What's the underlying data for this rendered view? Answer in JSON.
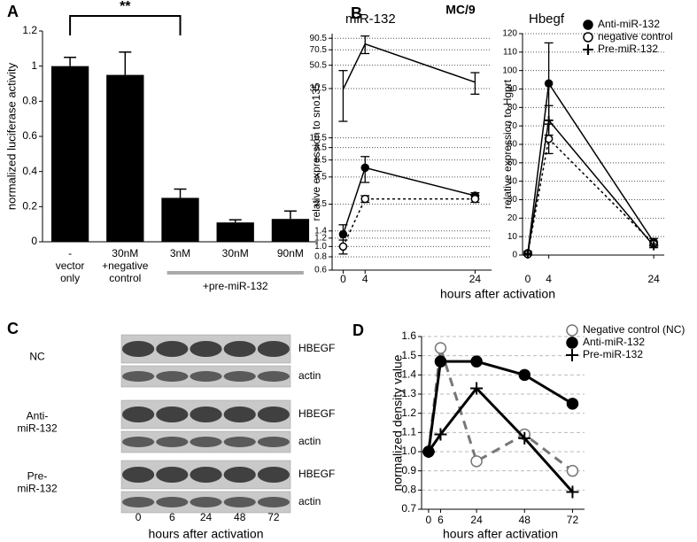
{
  "panel_labels": [
    "A",
    "B",
    "C",
    "D"
  ],
  "chart_data": [
    {
      "type": "bar",
      "y_label": "normalized luciferase activity",
      "categories": [
        [
          "-",
          "vector",
          "only"
        ],
        [
          "30nM",
          "+negative",
          "control"
        ],
        [
          "3nM"
        ],
        [
          "30nM"
        ],
        [
          "90nM"
        ]
      ],
      "values": [
        1.0,
        0.95,
        0.25,
        0.11,
        0.13
      ],
      "errors": [
        0.05,
        0.13,
        0.05,
        0.015,
        0.045
      ],
      "color": "#000000",
      "ylim": [
        0,
        1.2
      ],
      "yticks": [
        0,
        0.2,
        0.4,
        0.6,
        0.8,
        1,
        1.2
      ],
      "annotations": [
        {
          "text": "**",
          "span": [
            0,
            2
          ],
          "style": "bracket"
        },
        {
          "text": "+pre-miR-132",
          "span": [
            2,
            4
          ],
          "style": "group"
        }
      ]
    },
    {
      "type": "line",
      "suptitle": "MC/9",
      "title": "miR-132",
      "x_label": "hours after activation",
      "y_label": "relative expression to sno135",
      "x": [
        0,
        4,
        24
      ],
      "xlim": [
        -2,
        27
      ],
      "xticks": [
        0,
        4,
        24
      ],
      "ylim": [
        0.6,
        100
      ],
      "log_y": true,
      "yticks": [
        0.6,
        0.8,
        {
          "value": 1,
          "label": "1.0"
        },
        1.2,
        1.4,
        2.5,
        4.5,
        6.5,
        8.5,
        10.5,
        30.5,
        50.5,
        70.5,
        90.5
      ],
      "grid": "dotted",
      "series": [
        {
          "color": "#000000",
          "marker": "none",
          "dash": false,
          "values": [
            30,
            80,
            35
          ],
          "errors": [
            15,
            15,
            8
          ]
        },
        {
          "color": "#000000",
          "marker": "filled",
          "dash": false,
          "values": [
            1.3,
            5.5,
            3.0
          ],
          "errors": [
            0.3,
            1.5,
            0.2
          ]
        },
        {
          "color": "#000000",
          "marker": "open",
          "dash": true,
          "values": [
            1.0,
            2.8,
            2.8
          ],
          "errors": [
            0.15,
            0.2,
            0.2
          ]
        }
      ]
    },
    {
      "type": "line",
      "title": "Hbegf",
      "y_label": "relative expression to Hgprt",
      "x": [
        0,
        4,
        24
      ],
      "xlim": [
        -1,
        26
      ],
      "xticks": [
        0,
        4,
        24
      ],
      "ylim": [
        0,
        120
      ],
      "yticks": [
        0,
        10,
        20,
        30,
        40,
        50,
        60,
        70,
        80,
        90,
        100,
        110,
        120
      ],
      "grid": "dotted",
      "legend": "upper right",
      "series": [
        {
          "name": "Anti-miR-132",
          "color": "#000000",
          "marker": "filled",
          "dash": false,
          "values": [
            1,
            93,
            7
          ],
          "errors": [
            1,
            22,
            2
          ]
        },
        {
          "name": "negative control",
          "color": "#000000",
          "marker": "open",
          "dash": true,
          "values": [
            0.5,
            63,
            6
          ],
          "errors": [
            0.5,
            8,
            1
          ]
        },
        {
          "name": "Pre-miR-132",
          "color": "#000000",
          "marker": "plus",
          "dash": false,
          "values": [
            0.5,
            73,
            5
          ],
          "errors": [
            0.5,
            8,
            1
          ]
        }
      ]
    },
    {
      "type": "line",
      "x_label": "hours after activation",
      "y_label": "normalized density value",
      "x": [
        0,
        6,
        24,
        48,
        72
      ],
      "xlim": [
        -3.5,
        78
      ],
      "xticks": [
        0,
        6,
        24,
        48,
        72
      ],
      "ylim": [
        0.7,
        1.6
      ],
      "yticks": [
        0.7,
        0.8,
        0.9,
        {
          "value": 1,
          "label": "1.0"
        },
        1.1,
        1.2,
        1.3,
        1.4,
        1.5,
        1.6
      ],
      "grid": "dashed",
      "legend": "upper right",
      "series": [
        {
          "name": "Negative control (NC)",
          "color": "#777777",
          "marker": "open",
          "dash": true,
          "values": [
            1.0,
            1.54,
            0.95,
            1.09,
            0.9
          ]
        },
        {
          "name": "Anti-miR-132",
          "color": "#000000",
          "marker": "filled",
          "dash": false,
          "values": [
            1.0,
            1.47,
            1.47,
            1.4,
            1.25
          ]
        },
        {
          "name": "Pre-miR-132",
          "color": "#000000",
          "marker": "plus",
          "dash": false,
          "values": [
            1.0,
            1.09,
            1.33,
            1.07,
            0.79
          ]
        }
      ]
    }
  ],
  "blot": {
    "rows": [
      {
        "label": [
          "NC"
        ],
        "bands": [
          "HBEGF",
          "actin"
        ]
      },
      {
        "label": [
          "Anti-",
          "miR-132"
        ],
        "bands": [
          "HBEGF",
          "actin"
        ]
      },
      {
        "label": [
          "Pre-",
          "miR-132"
        ],
        "bands": [
          "HBEGF",
          "actin"
        ]
      }
    ],
    "lanes": [
      0,
      6,
      24,
      48,
      72
    ],
    "x_label": "hours after activation"
  }
}
